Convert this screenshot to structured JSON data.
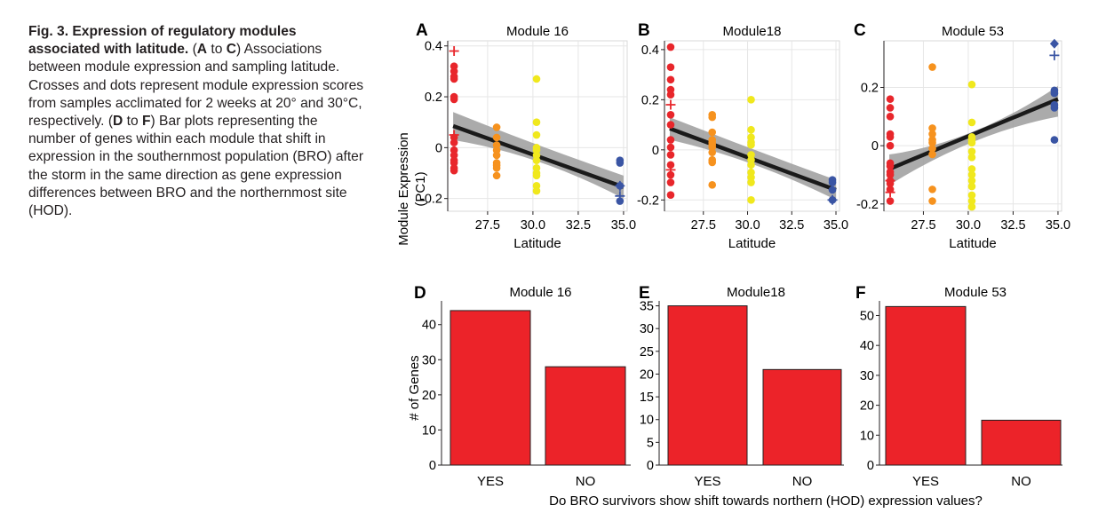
{
  "caption": {
    "title": "Fig. 3. Expression of regulatory modules associated with latitude.",
    "segments": [
      {
        "t": " ("
      },
      {
        "b": "A"
      },
      {
        "t": " to "
      },
      {
        "b": "C"
      },
      {
        "t": ") Associations between module expression and sampling latitude. Crosses and dots represent module expression scores from samples acclimated for 2 weeks at 20° and 30°C, respectively. ("
      },
      {
        "b": "D"
      },
      {
        "t": " to "
      },
      {
        "b": "F"
      },
      {
        "t": ") Bar plots representing the number of genes within each module that shift in expression in the southernmost population (BRO) after the storm in the same direction as gene expression differences between BRO and the northernmost site (HOD)."
      }
    ]
  },
  "colors": {
    "site1": "#e8262b",
    "site2": "#f6921e",
    "site3": "#f0e81d",
    "site4": "#3a55a4",
    "bar": "#ec2329",
    "ribbon": "#9c9c9c",
    "fit": "#1a1a1a",
    "grid": "#e6e6e6"
  },
  "scatter_common": {
    "xlabel": "Latitude",
    "ylabel_line1": "Module Expression",
    "ylabel_line2": "(PC1)",
    "xticks": [
      "27.5",
      "30.0",
      "32.5",
      "35.0"
    ]
  },
  "bar_common": {
    "ylabel": "# of Genes",
    "xlabel": "Do BRO survivors show shift towards northern (HOD) expression values?"
  },
  "chart_data": [
    {
      "panel": "A",
      "type": "scatter",
      "title": "Module 16",
      "xlabel": "Latitude",
      "ylabel": "Module Expression (PC1)",
      "xlim": [
        25.3,
        35.2
      ],
      "ylim": [
        -0.25,
        0.42
      ],
      "yticks": [
        0.4,
        0.2,
        0,
        -0.2
      ],
      "ytick_labels": [
        "0.4",
        "0.2",
        "0",
        "-0.2"
      ],
      "xticks": [
        27.5,
        30,
        32.5,
        35
      ],
      "xtick_labels": [
        "27.5",
        "30.0",
        "32.5",
        "35.0"
      ],
      "fit": {
        "x": [
          25.6,
          35.0
        ],
        "y": [
          0.085,
          -0.155
        ],
        "ci_start": [
          0.14,
          0.03
        ],
        "ci_mid": [
          0.005,
          -0.025
        ],
        "ci_end": [
          -0.11,
          -0.2
        ]
      },
      "groups": [
        {
          "x": 25.65,
          "color": "site1",
          "dots": [
            0.32,
            0.3,
            0.28,
            0.27,
            0.2,
            0.19,
            0.04,
            0.02,
            -0.01,
            -0.03,
            -0.05,
            -0.06,
            -0.08,
            -0.09
          ],
          "crosses": [
            0.38,
            0.05
          ]
        },
        {
          "x": 28.0,
          "color": "site2",
          "dots": [
            0.08,
            0.04,
            0.01,
            -0.01,
            -0.03,
            -0.06,
            -0.07,
            -0.08,
            -0.11
          ],
          "crosses": []
        },
        {
          "x": 30.2,
          "color": "site3",
          "dots": [
            0.27,
            0.1,
            0.05,
            0.0,
            -0.01,
            -0.03,
            -0.05,
            -0.08,
            -0.1,
            -0.11,
            -0.15,
            -0.17
          ],
          "crosses": []
        },
        {
          "x": 34.8,
          "color": "site4",
          "dots": [
            -0.05,
            -0.06,
            -0.15,
            -0.21
          ],
          "crosses": [
            -0.15,
            -0.19
          ]
        }
      ]
    },
    {
      "panel": "B",
      "type": "scatter",
      "title": "Module18",
      "xlabel": "Latitude",
      "ylabel": "",
      "xlim": [
        25.3,
        35.2
      ],
      "ylim": [
        -0.245,
        0.435
      ],
      "yticks": [
        0.4,
        0.2,
        0,
        -0.2
      ],
      "ytick_labels": [
        "0.4",
        "0.2",
        "0",
        "-0.2"
      ],
      "xticks": [
        27.5,
        30,
        32.5,
        35
      ],
      "xtick_labels": [
        "27.5",
        "30.0",
        "32.5",
        "35.0"
      ],
      "fit": {
        "x": [
          25.6,
          35.0
        ],
        "y": [
          0.085,
          -0.16
        ],
        "ci_start": [
          0.13,
          0.04
        ],
        "ci_mid": [
          0.0,
          -0.035
        ],
        "ci_end": [
          -0.12,
          -0.2
        ]
      },
      "groups": [
        {
          "x": 25.65,
          "color": "site1",
          "dots": [
            0.41,
            0.33,
            0.28,
            0.24,
            0.22,
            0.14,
            0.1,
            0.04,
            0.01,
            -0.02,
            -0.06,
            -0.1,
            -0.13,
            -0.18
          ],
          "crosses": [
            0.18,
            -0.08
          ]
        },
        {
          "x": 28.0,
          "color": "site2",
          "dots": [
            0.14,
            0.13,
            0.07,
            0.04,
            0.03,
            0.02,
            0.01,
            -0.01,
            -0.04,
            -0.05,
            -0.14
          ],
          "crosses": []
        },
        {
          "x": 30.2,
          "color": "site3",
          "dots": [
            0.2,
            0.08,
            0.05,
            0.03,
            0.02,
            -0.02,
            -0.04,
            -0.06,
            -0.09,
            -0.11,
            -0.13,
            -0.2
          ],
          "crosses": []
        },
        {
          "x": 34.8,
          "color": "site4",
          "dots": [
            -0.12,
            -0.13,
            -0.16,
            -0.2
          ],
          "crosses": [
            -0.2
          ]
        }
      ]
    },
    {
      "panel": "C",
      "type": "scatter",
      "title": "Module 53",
      "xlabel": "Latitude",
      "ylabel": "",
      "xlim": [
        25.3,
        35.2
      ],
      "ylim": [
        -0.225,
        0.36
      ],
      "yticks": [
        0.2,
        0,
        -0.2
      ],
      "ytick_labels": [
        "0.2",
        "0",
        "-0.2"
      ],
      "xticks": [
        27.5,
        30,
        32.5,
        35
      ],
      "xtick_labels": [
        "27.5",
        "30.0",
        "32.5",
        "35.0"
      ],
      "fit": {
        "x": [
          25.6,
          35.0
        ],
        "y": [
          -0.08,
          0.16
        ],
        "ci_start": [
          -0.03,
          -0.135
        ],
        "ci_mid": [
          0.01,
          0.045
        ],
        "ci_end": [
          0.205,
          0.1
        ]
      },
      "groups": [
        {
          "x": 25.65,
          "color": "site1",
          "dots": [
            0.16,
            0.13,
            0.1,
            0.04,
            0.03,
            0.0,
            -0.06,
            -0.07,
            -0.09,
            -0.1,
            -0.12,
            -0.13,
            -0.15,
            -0.19
          ],
          "crosses": [
            -0.16,
            -0.12
          ]
        },
        {
          "x": 28.0,
          "color": "site2",
          "dots": [
            0.27,
            0.06,
            0.04,
            0.02,
            0.01,
            -0.01,
            -0.03,
            -0.15,
            -0.19
          ],
          "crosses": []
        },
        {
          "x": 30.2,
          "color": "site3",
          "dots": [
            0.21,
            0.08,
            0.03,
            0.02,
            0.01,
            -0.02,
            -0.04,
            -0.08,
            -0.1,
            -0.12,
            -0.14,
            -0.17,
            -0.19,
            -0.21
          ],
          "crosses": []
        },
        {
          "x": 34.8,
          "color": "site4",
          "dots": [
            0.19,
            0.18,
            0.14,
            0.13,
            0.02
          ],
          "crosses": [
            0.31
          ],
          "diamonds": [
            0.35
          ]
        }
      ]
    },
    {
      "panel": "D",
      "type": "bar",
      "title": "Module 16",
      "categories": [
        "YES",
        "NO"
      ],
      "values": [
        44,
        28
      ],
      "ylim": [
        0,
        46
      ],
      "yticks": [
        0,
        10,
        20,
        30,
        40
      ],
      "ylabel": "# of Genes"
    },
    {
      "panel": "E",
      "type": "bar",
      "title": "Module18",
      "categories": [
        "YES",
        "NO"
      ],
      "values": [
        35,
        21
      ],
      "ylim": [
        0,
        35.5
      ],
      "yticks": [
        0,
        5,
        10,
        15,
        20,
        25,
        30,
        35
      ],
      "ylabel": ""
    },
    {
      "panel": "F",
      "type": "bar",
      "title": "Module 53",
      "categories": [
        "YES",
        "NO"
      ],
      "values": [
        53,
        15
      ],
      "ylim": [
        0,
        54
      ],
      "yticks": [
        0,
        10,
        20,
        30,
        40,
        50
      ],
      "ylabel": ""
    }
  ]
}
